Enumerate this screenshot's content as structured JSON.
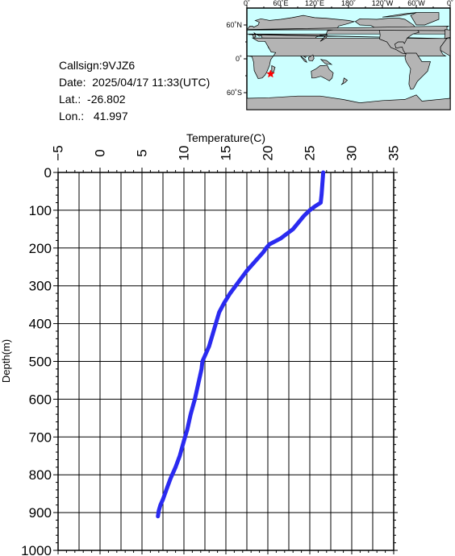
{
  "info": {
    "callsign": "Callsign:9VJZ6",
    "date_label": "Date:",
    "date_value": "2025/04/17 11:33(UTC)",
    "lat_label": "Lat.:",
    "lat_value": "-26.802",
    "lon_label": "Lon.:",
    "lon_value": "41.997"
  },
  "map": {
    "lon_labels": [
      "0˚",
      "60˚E",
      "120˚E",
      "180˚",
      "120˚W",
      "60˚W",
      "0˚"
    ],
    "lat_labels": [
      "60˚N",
      "0˚",
      "60˚S"
    ],
    "marker": {
      "lat": -26.802,
      "lon": 41.997
    },
    "colors": {
      "ocean": "#ccffff",
      "land": "#b4b4b4",
      "marker": "#ff0000"
    }
  },
  "chart_data": {
    "type": "line",
    "xlabel": "Temperature(C)",
    "ylabel": "Depth(m)",
    "xlim": [
      -5,
      35
    ],
    "ylim": [
      1000,
      0
    ],
    "xticks": [
      -5,
      0,
      5,
      10,
      15,
      20,
      25,
      30,
      35
    ],
    "yticks": [
      0,
      100,
      200,
      300,
      400,
      500,
      600,
      700,
      800,
      900,
      1000
    ],
    "grid": true,
    "line_color": "#2a2af0",
    "series": [
      {
        "x": [
          26.6,
          26.5,
          26.4,
          26.3,
          25.6,
          25.0,
          24.3,
          23.0,
          21.5,
          20.2,
          19.8,
          19.5,
          18.7,
          17.5,
          16.5,
          15.5,
          14.8,
          14.2,
          13.8,
          13.4,
          13.0,
          12.6,
          12.2,
          12.1,
          11.7,
          11.3,
          10.8,
          10.4,
          10.0,
          9.5,
          9.0,
          8.4,
          7.9,
          7.5,
          7.2,
          7.0,
          6.9
        ],
        "y": [
          0,
          30,
          60,
          80,
          90,
          100,
          115,
          150,
          175,
          190,
          200,
          210,
          230,
          260,
          290,
          320,
          345,
          370,
          400,
          430,
          460,
          480,
          500,
          520,
          560,
          600,
          640,
          680,
          710,
          750,
          780,
          810,
          840,
          865,
          880,
          895,
          910
        ]
      }
    ]
  }
}
